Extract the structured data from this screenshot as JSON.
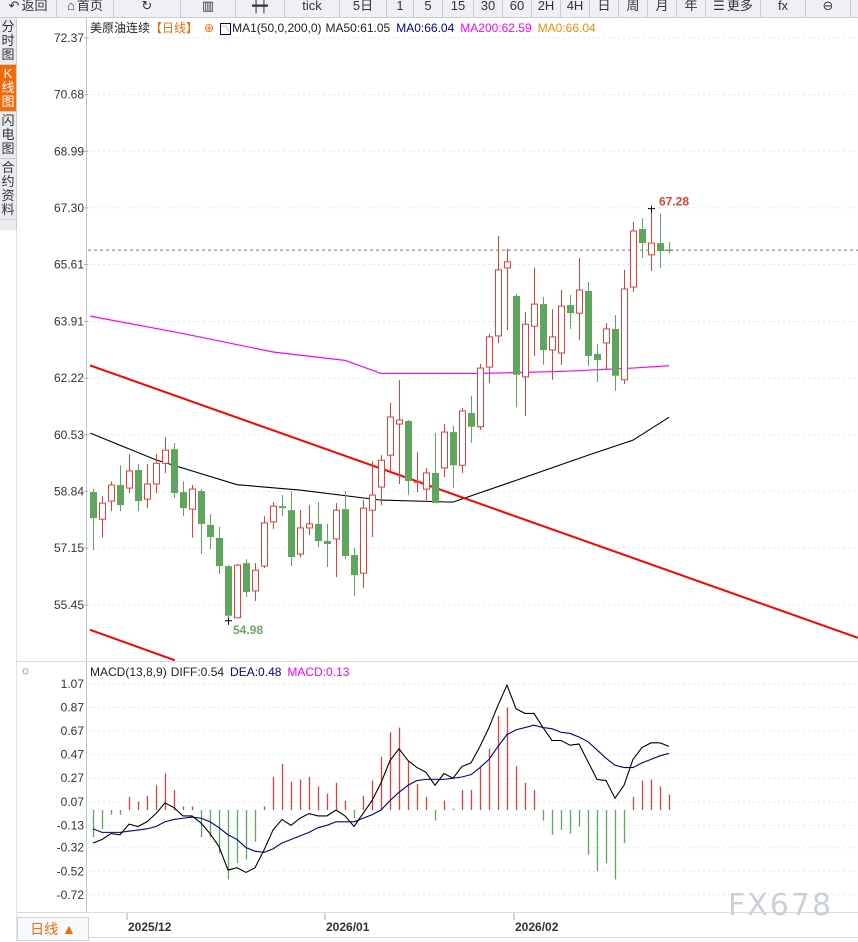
{
  "toolbar": {
    "items": [
      {
        "icon": "back-arrow-icon",
        "glyph": "↶",
        "label": "返回"
      },
      {
        "icon": "home-icon",
        "glyph": "⌂",
        "label": "首页"
      },
      {
        "icon": "refresh-icon",
        "glyph": "↻",
        "label": ""
      },
      {
        "icon": "bar-chart-icon",
        "glyph": "▥",
        "label": ""
      },
      {
        "icon": "candlestick-icon",
        "glyph": "┿┿",
        "label": ""
      },
      {
        "icon": "",
        "glyph": "",
        "label": "tick"
      },
      {
        "icon": "",
        "glyph": "",
        "label": "5日"
      },
      {
        "icon": "",
        "glyph": "",
        "label": "1"
      },
      {
        "icon": "",
        "glyph": "",
        "label": "5"
      },
      {
        "icon": "",
        "glyph": "",
        "label": "15"
      },
      {
        "icon": "",
        "glyph": "",
        "label": "30"
      },
      {
        "icon": "",
        "glyph": "",
        "label": "60"
      },
      {
        "icon": "",
        "glyph": "",
        "label": "2H"
      },
      {
        "icon": "",
        "glyph": "",
        "label": "4H"
      },
      {
        "icon": "",
        "glyph": "",
        "label": "日"
      },
      {
        "icon": "",
        "glyph": "",
        "label": "周"
      },
      {
        "icon": "",
        "glyph": "",
        "label": "月"
      },
      {
        "icon": "",
        "glyph": "",
        "label": "年"
      },
      {
        "icon": "menu-icon",
        "glyph": "☰",
        "label": "更多"
      },
      {
        "icon": "fx-icon",
        "glyph": "fx",
        "label": ""
      },
      {
        "icon": "zoom-out-icon",
        "glyph": "⊖",
        "label": ""
      }
    ]
  },
  "sidebar": {
    "items": [
      {
        "label": "分时图",
        "active": false
      },
      {
        "label": "K线图",
        "active": true
      },
      {
        "label": "闪电图",
        "active": false
      },
      {
        "label": "合约资料",
        "active": false
      }
    ]
  },
  "legend": {
    "symbol": "美原油连续",
    "period": "【日线】",
    "indicator": "MA1(50,0,200,0)",
    "ma50": "MA50:61.05",
    "ma0a": "MA0:66.04",
    "ma200": "MA200:62.59",
    "ma0b": "MA0:66.04"
  },
  "macd_legend": {
    "name": "MACD(13,8,9)",
    "diff": "DIFF:0.54",
    "dea": "DEA:0.48",
    "macd": "MACD:0.13"
  },
  "colors": {
    "up": "#e0403a",
    "down": "#5ea55e",
    "ma50": "#000000",
    "ma200": "#ff00ff",
    "trendline": "#ff0000",
    "dea": "#00008b",
    "accent": "#f26b0a",
    "last_price": "#3a78d8"
  },
  "chart_data": [
    {
      "type": "candlestick",
      "y_ticks": [
        "72.37",
        "70.68",
        "68.99",
        "67.30",
        "65.61",
        "63.91",
        "62.22",
        "60.53",
        "58.84",
        "57.15",
        "55.45"
      ],
      "ylim": [
        55.45,
        72.37
      ],
      "grid": true,
      "x_ticks": [
        {
          "label": "2025/12",
          "index": 4
        },
        {
          "label": "2026/01",
          "index": 26
        },
        {
          "label": "2026/02",
          "index": 47
        }
      ],
      "last_price": 66.04,
      "high_label": {
        "text": "67.28",
        "index": 62,
        "value": 67.28
      },
      "low_label": {
        "text": "54.98",
        "index": 15,
        "value": 54.98
      },
      "ohlc": [
        [
          58.82,
          58.91,
          57.09,
          58.04
        ],
        [
          58.01,
          58.7,
          57.46,
          58.49
        ],
        [
          58.55,
          59.14,
          58.25,
          59.03
        ],
        [
          59.03,
          59.62,
          58.25,
          58.43
        ],
        [
          58.94,
          59.95,
          58.79,
          59.45
        ],
        [
          59.48,
          59.66,
          58.25,
          58.55
        ],
        [
          58.61,
          59.66,
          58.34,
          59.06
        ],
        [
          59.06,
          59.95,
          58.79,
          59.68
        ],
        [
          59.68,
          60.46,
          59.39,
          60.07
        ],
        [
          60.1,
          60.28,
          58.64,
          58.79
        ],
        [
          58.82,
          59.14,
          58.1,
          58.34
        ],
        [
          58.31,
          59.03,
          57.46,
          58.91
        ],
        [
          58.85,
          58.91,
          56.97,
          57.87
        ],
        [
          57.84,
          58.16,
          57.12,
          57.48
        ],
        [
          57.45,
          57.78,
          56.37,
          56.61
        ],
        [
          56.61,
          56.64,
          54.98,
          55.13
        ],
        [
          55.07,
          56.67,
          55.07,
          56.64
        ],
        [
          56.7,
          56.82,
          55.69,
          55.84
        ],
        [
          55.87,
          56.7,
          55.57,
          56.49
        ],
        [
          56.61,
          58.1,
          56.55,
          57.9
        ],
        [
          57.93,
          58.52,
          57.72,
          58.4
        ],
        [
          58.4,
          58.73,
          58.1,
          58.34
        ],
        [
          58.28,
          58.85,
          56.61,
          56.88
        ],
        [
          56.97,
          58.28,
          56.88,
          57.75
        ],
        [
          57.75,
          58.43,
          57.54,
          57.87
        ],
        [
          57.87,
          58.52,
          57.18,
          57.36
        ],
        [
          57.36,
          57.87,
          56.58,
          57.27
        ],
        [
          57.42,
          58.49,
          56.28,
          58.28
        ],
        [
          58.31,
          58.85,
          56.82,
          56.91
        ],
        [
          56.94,
          57.15,
          55.72,
          56.34
        ],
        [
          56.4,
          58.58,
          55.96,
          58.34
        ],
        [
          58.28,
          59.74,
          57.48,
          58.73
        ],
        [
          58.97,
          59.92,
          58.43,
          59.77
        ],
        [
          59.92,
          61.48,
          59.45,
          61.06
        ],
        [
          60.85,
          62.16,
          59.06,
          60.97
        ],
        [
          60.94,
          60.97,
          58.73,
          59.15
        ],
        [
          59.12,
          60.01,
          58.82,
          59.14
        ],
        [
          58.91,
          59.54,
          58.52,
          59.39
        ],
        [
          59.39,
          60.58,
          58.49,
          58.49
        ],
        [
          59.54,
          60.85,
          59.27,
          60.61
        ],
        [
          60.61,
          60.79,
          58.94,
          59.62
        ],
        [
          59.62,
          61.33,
          59.39,
          61.24
        ],
        [
          61.18,
          61.69,
          60.29,
          60.77
        ],
        [
          60.77,
          62.64,
          60.68,
          62.52
        ],
        [
          62.55,
          63.54,
          62.07,
          63.45
        ],
        [
          63.48,
          66.46,
          63.27,
          65.45
        ],
        [
          65.51,
          66.08,
          63.66,
          65.69
        ],
        [
          64.67,
          64.73,
          61.36,
          62.32
        ],
        [
          62.26,
          64.19,
          61.09,
          63.83
        ],
        [
          63.77,
          65.51,
          62.88,
          64.43
        ],
        [
          64.43,
          64.64,
          62.62,
          63.06
        ],
        [
          63.06,
          64.28,
          62.17,
          63.45
        ],
        [
          62.97,
          64.85,
          62.62,
          64.37
        ],
        [
          64.4,
          64.7,
          63.69,
          64.16
        ],
        [
          64.16,
          65.81,
          63.36,
          64.85
        ],
        [
          64.82,
          65.09,
          62.59,
          62.88
        ],
        [
          62.94,
          63.24,
          62.11,
          62.76
        ],
        [
          63.27,
          63.86,
          62.46,
          63.69
        ],
        [
          63.69,
          64.1,
          61.84,
          62.29
        ],
        [
          62.17,
          65.45,
          62.05,
          64.88
        ],
        [
          64.94,
          66.88,
          64.79,
          66.61
        ],
        [
          66.67,
          66.99,
          65.81,
          66.25
        ],
        [
          65.9,
          67.28,
          65.42,
          66.25
        ],
        [
          66.25,
          67.12,
          65.51,
          66.01
        ],
        [
          66.06,
          66.28,
          65.93,
          66.04
        ]
      ],
      "ma50": [
        [
          -0.3,
          60.58
        ],
        [
          7,
          59.78
        ],
        [
          16,
          59.04
        ],
        [
          23,
          58.88
        ],
        [
          32,
          58.58
        ],
        [
          40,
          58.52
        ],
        [
          47,
          59.17
        ],
        [
          55,
          59.92
        ],
        [
          60,
          60.37
        ],
        [
          64,
          61.05
        ]
      ],
      "ma200": [
        [
          -0.3,
          64.07
        ],
        [
          10,
          63.55
        ],
        [
          20,
          63.0
        ],
        [
          28,
          62.75
        ],
        [
          32,
          62.36
        ],
        [
          43,
          62.36
        ],
        [
          52,
          62.42
        ],
        [
          60,
          62.52
        ],
        [
          64,
          62.59
        ]
      ],
      "trendlines": [
        {
          "from": [
            -0.33,
            62.6
          ],
          "to": [
            85,
            54.47
          ]
        },
        {
          "from": [
            -0.33,
            54.71
          ],
          "to": [
            9.1,
            53.8
          ]
        }
      ]
    },
    {
      "type": "macd",
      "y_ticks": [
        "1.07",
        "0.87",
        "0.67",
        "0.47",
        "0.27",
        "0.07",
        "-0.13",
        "-0.32",
        "-0.52",
        "-0.72"
      ],
      "ylim": [
        -0.72,
        1.07
      ],
      "diff": [
        -0.28,
        -0.25,
        -0.2,
        -0.21,
        -0.12,
        -0.14,
        -0.1,
        -0.03,
        0.06,
        0.02,
        -0.05,
        -0.05,
        -0.11,
        -0.2,
        -0.31,
        -0.51,
        -0.49,
        -0.53,
        -0.49,
        -0.34,
        -0.17,
        -0.08,
        -0.13,
        -0.07,
        -0.03,
        -0.05,
        -0.05,
        0.0,
        -0.05,
        -0.14,
        -0.03,
        0.08,
        0.23,
        0.42,
        0.52,
        0.42,
        0.36,
        0.32,
        0.21,
        0.31,
        0.27,
        0.37,
        0.4,
        0.54,
        0.7,
        0.89,
        1.06,
        0.86,
        0.82,
        0.82,
        0.7,
        0.59,
        0.59,
        0.55,
        0.56,
        0.41,
        0.26,
        0.25,
        0.1,
        0.21,
        0.43,
        0.53,
        0.57,
        0.57,
        0.54
      ],
      "dea": [
        -0.16,
        -0.19,
        -0.19,
        -0.19,
        -0.18,
        -0.17,
        -0.16,
        -0.14,
        -0.1,
        -0.08,
        -0.07,
        -0.06,
        -0.07,
        -0.1,
        -0.15,
        -0.21,
        -0.25,
        -0.32,
        -0.35,
        -0.36,
        -0.33,
        -0.28,
        -0.25,
        -0.22,
        -0.19,
        -0.15,
        -0.13,
        -0.1,
        -0.1,
        -0.1,
        -0.07,
        -0.04,
        0.0,
        0.08,
        0.15,
        0.21,
        0.25,
        0.26,
        0.26,
        0.26,
        0.27,
        0.28,
        0.3,
        0.36,
        0.43,
        0.54,
        0.64,
        0.68,
        0.7,
        0.72,
        0.7,
        0.69,
        0.66,
        0.65,
        0.62,
        0.58,
        0.51,
        0.44,
        0.38,
        0.36,
        0.36,
        0.4,
        0.43,
        0.46,
        0.48
      ],
      "histogram": [
        -0.23,
        -0.16,
        -0.04,
        -0.04,
        0.11,
        0.07,
        0.12,
        0.21,
        0.31,
        0.17,
        0.03,
        0.03,
        -0.23,
        -0.23,
        -0.37,
        -0.59,
        -0.45,
        -0.42,
        -0.27,
        0.03,
        0.28,
        0.39,
        0.24,
        0.26,
        0.28,
        0.2,
        0.14,
        0.23,
        0.08,
        -0.07,
        0.12,
        0.25,
        0.45,
        0.66,
        0.7,
        0.42,
        0.22,
        0.11,
        -0.09,
        0.08,
        0.01,
        0.17,
        0.17,
        0.36,
        0.52,
        0.8,
        0.87,
        0.37,
        0.23,
        0.17,
        -0.09,
        -0.21,
        -0.17,
        -0.2,
        -0.14,
        -0.38,
        -0.52,
        -0.45,
        -0.59,
        -0.28,
        0.11,
        0.25,
        0.26,
        0.2,
        0.13
      ]
    }
  ],
  "bottom": {
    "period_button": "日线 ▲"
  },
  "watermark": "FX678"
}
